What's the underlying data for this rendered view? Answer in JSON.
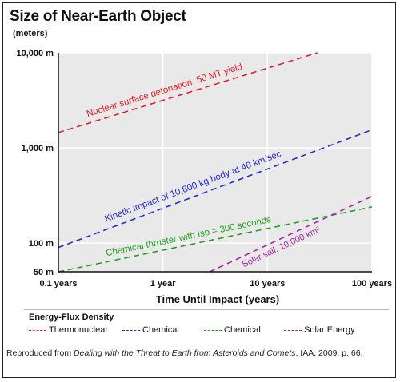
{
  "chart_data": {
    "type": "line",
    "title": "Size of Near-Earth Object",
    "units_label": "(meters)",
    "xlabel": "Time Until Impact (years)",
    "ylabel": "",
    "x_scale": "log",
    "y_scale": "log",
    "xlim": [
      0.1,
      100
    ],
    "ylim": [
      50,
      10000
    ],
    "x_ticks": [
      0.1,
      1,
      10,
      100
    ],
    "x_tick_labels": [
      "0.1 years",
      "1 year",
      "10 years",
      "100 years"
    ],
    "y_ticks": [
      50,
      100,
      1000,
      10000
    ],
    "y_tick_labels": [
      "50 m",
      "100 m",
      "1,000 m",
      "10,000 m"
    ],
    "grid": true,
    "legend_title": "Energy-Flux Density",
    "series": [
      {
        "name": "Thermonuclear",
        "color": "#e0202a",
        "annotation": "Nuclear surface detonation, 50 MT yield",
        "x": [
          0.1,
          30
        ],
        "y": [
          1450,
          10000
        ]
      },
      {
        "name": "Chemical",
        "color": "#2a2acc",
        "annotation": "Kinetic impact of 10,800 kg body at 40 km/sec",
        "x": [
          0.1,
          100
        ],
        "y": [
          90,
          1550
        ]
      },
      {
        "name": "Chemical",
        "color": "#22a022",
        "annotation": "Chemical thruster with Isp = 300 seconds",
        "x": [
          0.1,
          100
        ],
        "y": [
          50,
          240
        ]
      },
      {
        "name": "Solar Energy",
        "color": "#aa22aa",
        "annotation": "Solar sail, 10,000 km²",
        "x": [
          2.8,
          100
        ],
        "y": [
          50,
          310
        ]
      }
    ]
  },
  "caption": {
    "prefix": "Reproduced from ",
    "source_title": "Dealing with the Threat to Earth from Asteroids and Comets",
    "suffix": ", IAA, 2009, p. 66."
  }
}
